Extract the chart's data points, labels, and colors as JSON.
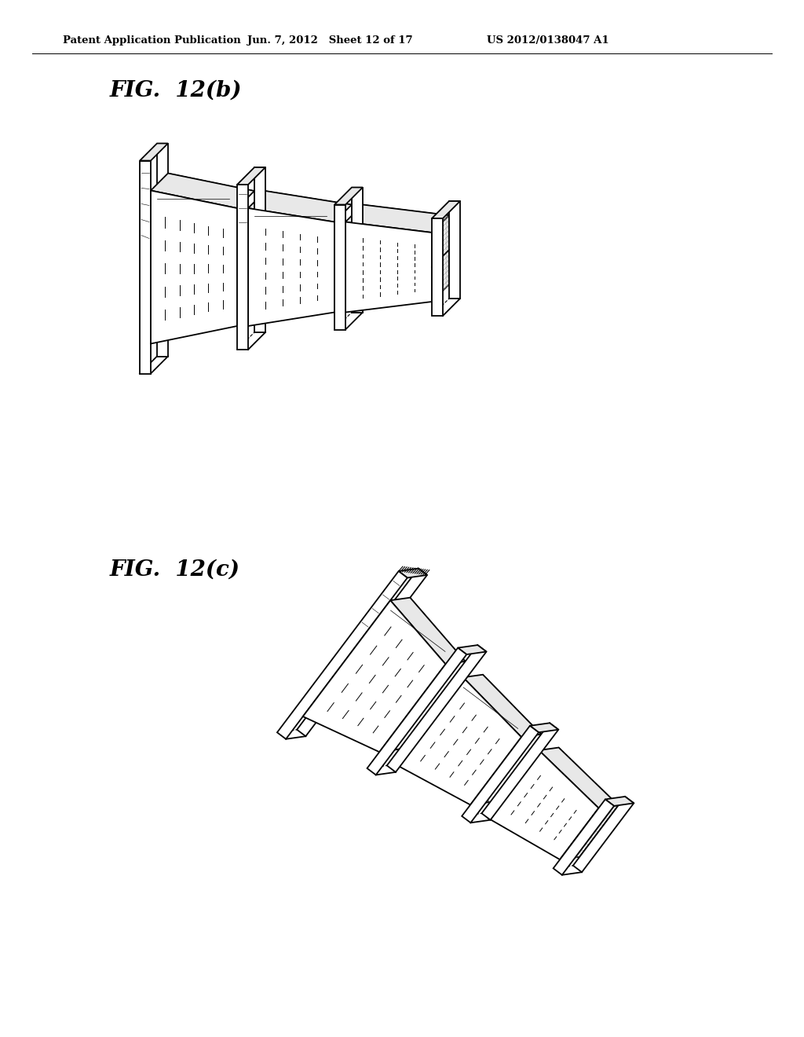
{
  "background_color": "#ffffff",
  "header_left": "Patent Application Publication",
  "header_mid": "Jun. 7, 2012   Sheet 12 of 17",
  "header_right": "US 2012/0138047 A1",
  "fig_b_label": "FIG.  12(b)",
  "fig_c_label": "FIG.  12(c)",
  "line_color": "#000000"
}
